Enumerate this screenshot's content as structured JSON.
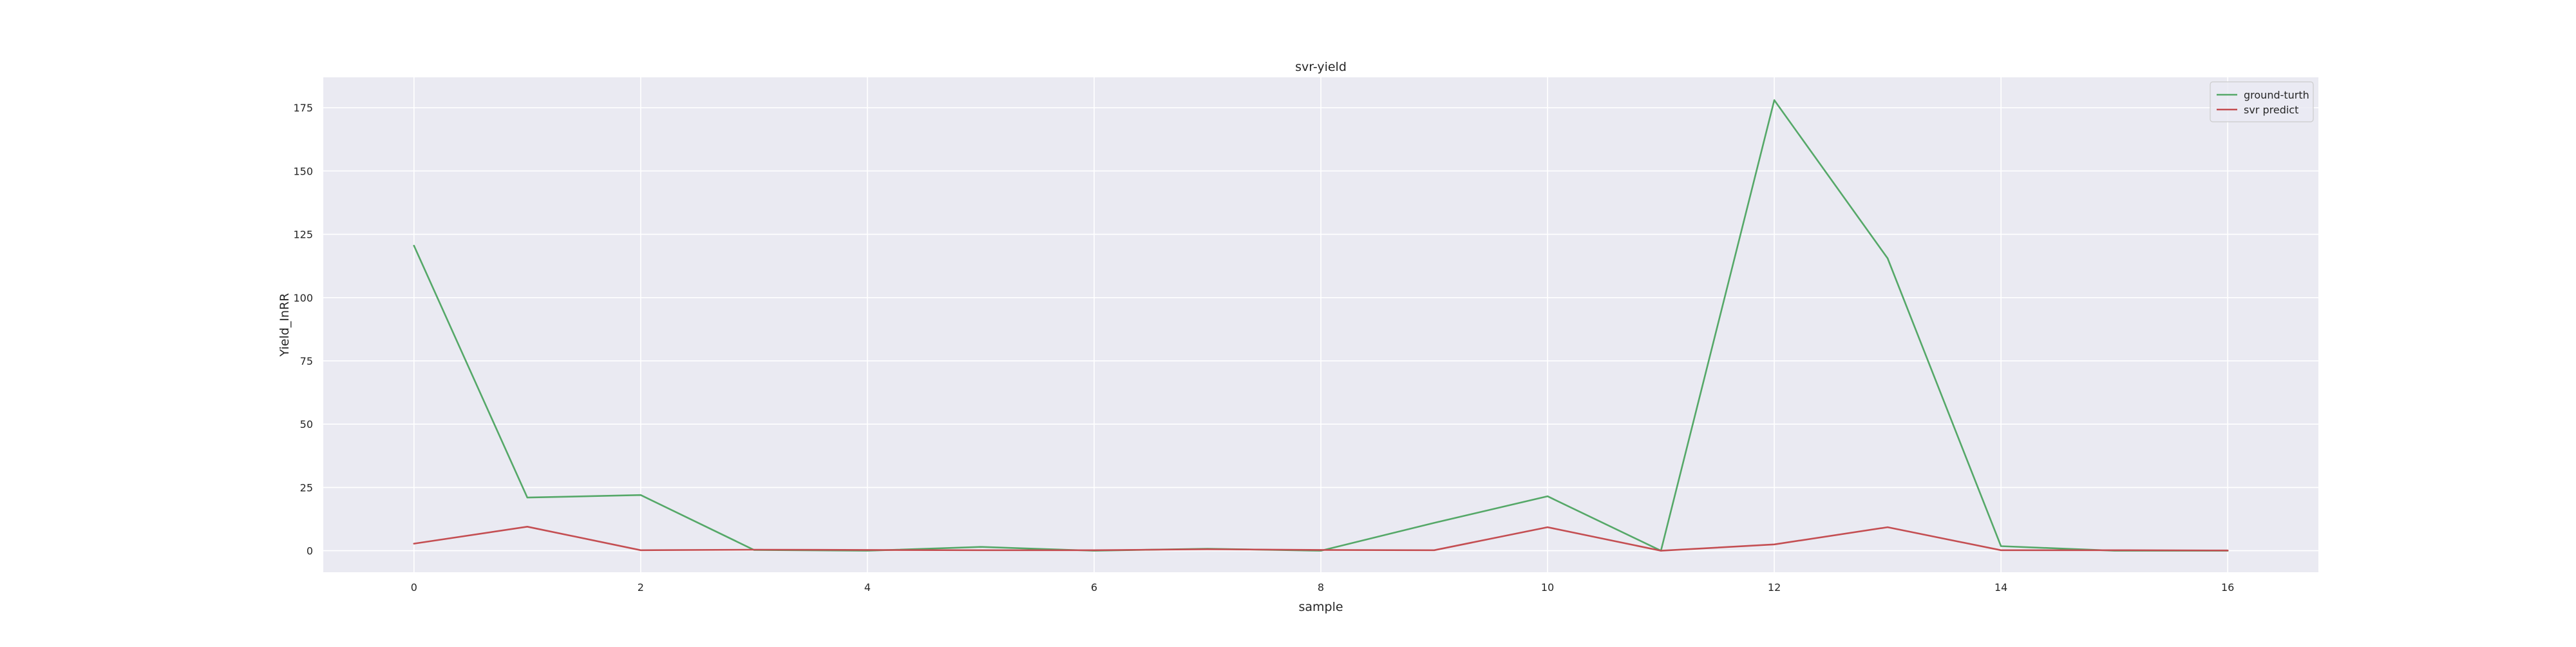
{
  "chart_data": {
    "type": "line",
    "title": "svr-yield",
    "xlabel": "sample",
    "ylabel": "Yield_InRR",
    "x": [
      0,
      1,
      2,
      3,
      4,
      5,
      6,
      7,
      8,
      9,
      10,
      11,
      12,
      13,
      14,
      15,
      16
    ],
    "series": [
      {
        "name": "ground-turth",
        "color": "#55a868",
        "values": [
          120.5,
          21,
          22,
          0.3,
          0,
          1.5,
          0,
          0.8,
          0,
          11,
          21.5,
          0,
          178,
          115.5,
          1.8,
          0,
          0
        ]
      },
      {
        "name": "svr predict",
        "color": "#c44e52",
        "values": [
          2.8,
          9.5,
          0.2,
          0.4,
          0.3,
          0.2,
          0.2,
          0.6,
          0.3,
          0.2,
          9.3,
          0,
          2.5,
          9.3,
          0.2,
          0.2,
          0.1
        ]
      }
    ],
    "xlim": [
      -0.8,
      16.8
    ],
    "ylim": [
      -8.5,
      187
    ],
    "xticks": [
      0,
      2,
      4,
      6,
      8,
      10,
      12,
      14,
      16
    ],
    "yticks": [
      0,
      25,
      50,
      75,
      100,
      125,
      150,
      175
    ],
    "grid": true,
    "legend_position": "top-right",
    "style": {
      "background": "#eaeaf2",
      "grid_color": "#ffffff"
    }
  }
}
